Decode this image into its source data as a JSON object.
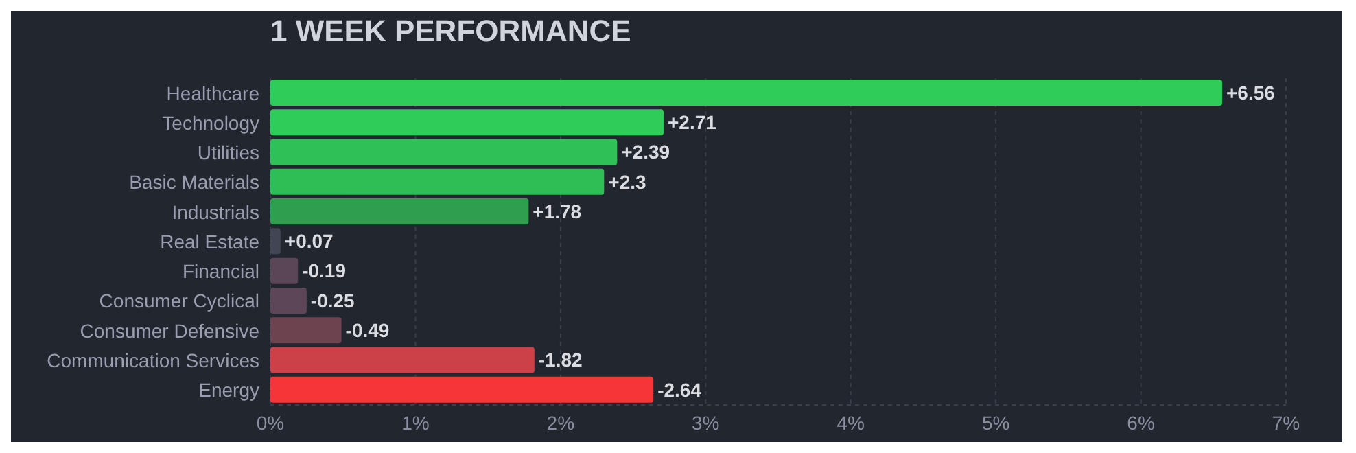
{
  "chart_data": {
    "type": "bar",
    "orientation": "horizontal",
    "title": "1 WEEK PERFORMANCE",
    "categories": [
      "Healthcare",
      "Technology",
      "Utilities",
      "Basic Materials",
      "Industrials",
      "Real Estate",
      "Financial",
      "Consumer Cyclical",
      "Consumer Defensive",
      "Communication Services",
      "Energy"
    ],
    "values": [
      6.56,
      2.71,
      2.39,
      2.3,
      1.78,
      0.07,
      0.19,
      0.25,
      0.49,
      1.82,
      2.64
    ],
    "annotations": [
      {
        "text": "+6.56",
        "x": 6.56,
        "y": "Healthcare"
      },
      {
        "text": "+2.71",
        "x": 2.71,
        "y": "Technology"
      },
      {
        "text": "+2.39",
        "x": 2.39,
        "y": "Utilities"
      },
      {
        "text": "+2.3",
        "x": 2.3,
        "y": "Basic Materials"
      },
      {
        "text": "+1.78",
        "x": 1.78,
        "y": "Industrials"
      },
      {
        "text": "+0.07",
        "x": 0.07,
        "y": "Real Estate"
      },
      {
        "text": "-0.19",
        "x": 0.19,
        "y": "Financial"
      },
      {
        "text": "-0.25",
        "x": 0.25,
        "y": "Consumer Cyclical"
      },
      {
        "text": "-0.49",
        "x": 0.49,
        "y": "Consumer Defensive"
      },
      {
        "text": "-1.82",
        "x": 1.82,
        "y": "Communication Services"
      },
      {
        "text": "-2.64",
        "x": 2.64,
        "y": "Energy"
      }
    ],
    "colors": [
      "#30cc5a",
      "#30cc5a",
      "#2fc158",
      "#2fbd56",
      "#2f9e4f",
      "#414554",
      "#5a4656",
      "#5c4658",
      "#6e4350",
      "#cc4048",
      "#f63538"
    ],
    "xlim": [
      0,
      7
    ],
    "xticks": [
      {
        "value": 0,
        "label": "0%"
      },
      {
        "value": 1,
        "label": "1%"
      },
      {
        "value": 2,
        "label": "2%"
      },
      {
        "value": 3,
        "label": "3%"
      },
      {
        "value": 4,
        "label": "4%"
      },
      {
        "value": 5,
        "label": "5%"
      },
      {
        "value": 6,
        "label": "6%"
      },
      {
        "value": 7,
        "label": "7%"
      }
    ],
    "grid": "x",
    "legend": false
  }
}
